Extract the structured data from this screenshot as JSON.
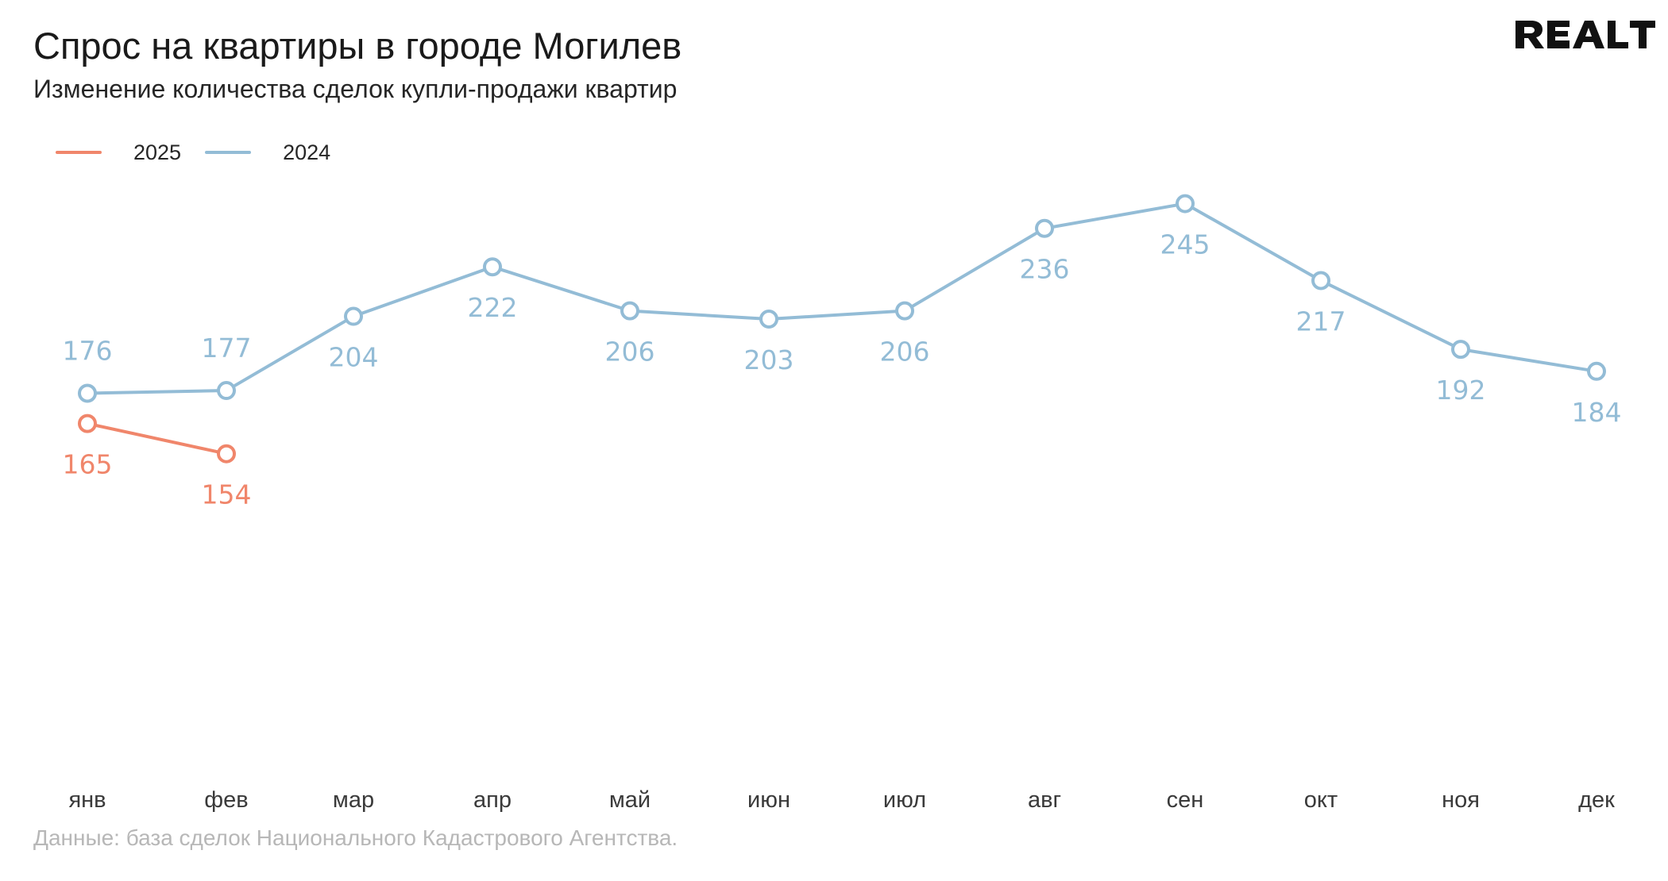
{
  "header": {
    "title": "Спрос на квартиры в городе Могилев",
    "subtitle": "Изменение количества сделок купли-продажи квартир",
    "logo_text": "REALT"
  },
  "footer": {
    "source": "Данные: база сделок Национального Кадастрового Агентства."
  },
  "chart_data": {
    "type": "line",
    "title": "Спрос на квартиры в городе Могилев",
    "subtitle": "Изменение количества сделок купли-продажи квартир",
    "xlabel": "",
    "ylabel": "",
    "grid": false,
    "legend_position": "top-left",
    "ylim": [
      0,
      360
    ],
    "categories": [
      "янв",
      "фев",
      "мар",
      "апр",
      "май",
      "июн",
      "июл",
      "авг",
      "сен",
      "окт",
      "ноя",
      "дек"
    ],
    "series": [
      {
        "name": "2025",
        "color": "#f0866b",
        "values": [
          165,
          154,
          null,
          null,
          null,
          null,
          null,
          null,
          null,
          null,
          null,
          null
        ]
      },
      {
        "name": "2024",
        "color": "#93bcd6",
        "values": [
          176,
          177,
          204,
          222,
          206,
          203,
          206,
          236,
          245,
          217,
          192,
          184
        ]
      }
    ]
  }
}
